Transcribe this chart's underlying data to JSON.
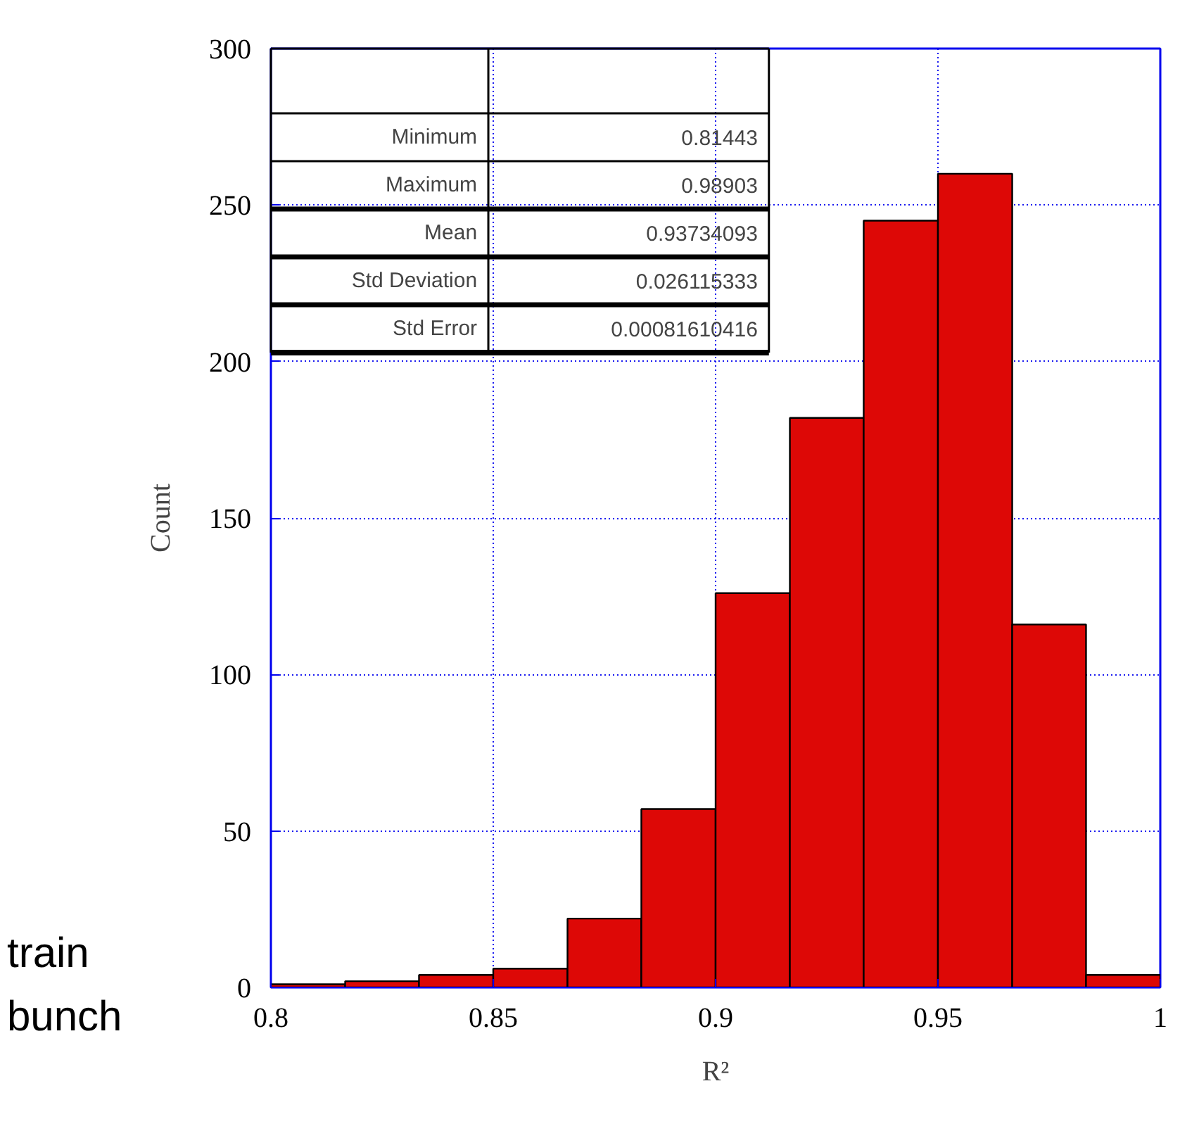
{
  "chart_data": {
    "type": "histogram",
    "xlabel": "R²",
    "ylabel": "Count",
    "bins": [
      0.8,
      0.8167,
      0.8333,
      0.85,
      0.8667,
      0.8833,
      0.9,
      0.9167,
      0.9333,
      0.95,
      0.9667,
      0.9833,
      1.0
    ],
    "values": [
      1,
      2,
      4,
      6,
      22,
      57,
      126,
      182,
      245,
      260,
      116,
      4
    ],
    "color": "#dd0806",
    "xlim": [
      0.8,
      1.0
    ],
    "xticks": [
      0.8,
      0.85,
      0.9,
      0.95,
      {
        "value": 1.0,
        "label": "1"
      }
    ],
    "ylim": [
      0,
      300
    ],
    "yticks": [
      0,
      50,
      100,
      150,
      200,
      250,
      300
    ],
    "grid": true,
    "annotations": [
      "train",
      "bunch",
      "Minimum",
      "0.81443",
      "Maximum",
      "0.98903",
      "Mean",
      "0.93734093",
      "Std Deviation",
      "0.026115333",
      "Std Error",
      "0.00081610416"
    ]
  }
}
